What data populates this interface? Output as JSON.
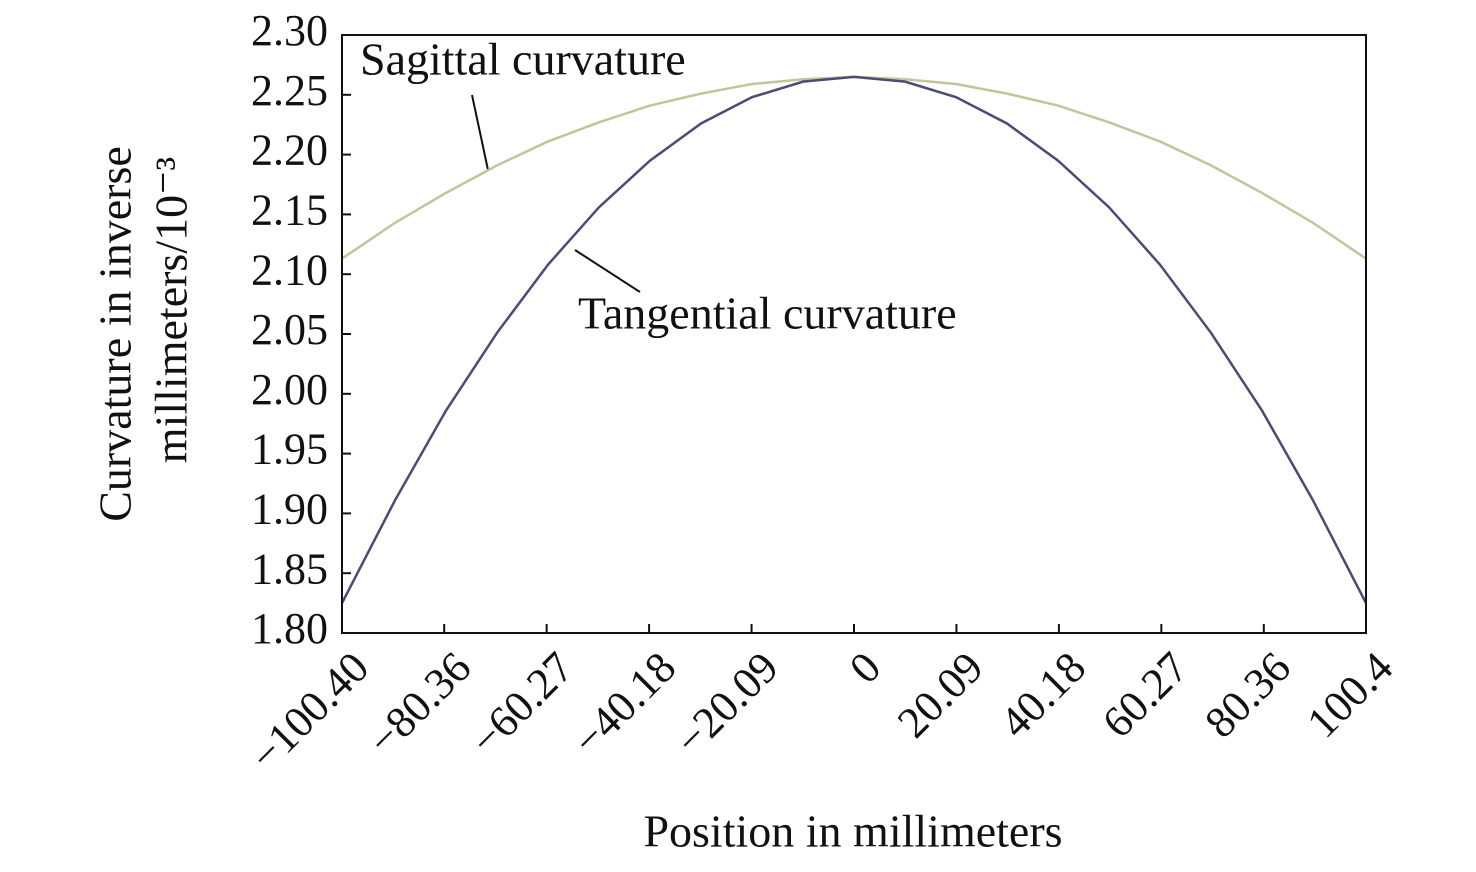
{
  "chart_data": {
    "type": "line",
    "xlabel": "Position in millimeters",
    "ylabel": [
      "Curvature in inverse",
      "millimeters/10⁻³"
    ],
    "x": [
      -100.4,
      -90,
      -80,
      -70,
      -60,
      -50,
      -40,
      -30,
      -20,
      -10,
      0,
      10,
      20,
      30,
      40,
      50,
      60,
      70,
      80,
      90,
      100.4
    ],
    "series": [
      {
        "name": "Sagittal curvature",
        "color": "#c4c49c",
        "values": [
          2.113,
          2.143,
          2.168,
          2.191,
          2.211,
          2.227,
          2.241,
          2.251,
          2.259,
          2.263,
          2.265,
          2.263,
          2.259,
          2.251,
          2.241,
          2.227,
          2.211,
          2.191,
          2.168,
          2.143,
          2.113
        ]
      },
      {
        "name": "Tangential curvature",
        "color": "#4a4c72",
        "values": [
          1.825,
          1.911,
          1.986,
          2.051,
          2.108,
          2.156,
          2.195,
          2.226,
          2.248,
          2.261,
          2.265,
          2.261,
          2.248,
          2.226,
          2.195,
          2.156,
          2.108,
          2.051,
          1.986,
          1.911,
          1.825
        ]
      }
    ],
    "xlim": [
      -100.4,
      100.4
    ],
    "xticks": [
      {
        "value": -100.4,
        "label": "−100.40"
      },
      {
        "value": -80.36,
        "label": "−80.36"
      },
      {
        "value": -60.27,
        "label": "−60.27"
      },
      {
        "value": -40.18,
        "label": "−40.18"
      },
      {
        "value": -20.09,
        "label": "−20.09"
      },
      0,
      20.09,
      40.18,
      60.27,
      80.36,
      100.4
    ],
    "ylim": [
      1.8,
      2.3
    ],
    "yticks": [
      {
        "value": 1.8,
        "label": "1.80"
      },
      1.85,
      {
        "value": 1.9,
        "label": "1.90"
      },
      1.95,
      {
        "value": 2.0,
        "label": "2.00"
      },
      2.05,
      {
        "value": 2.1,
        "label": "2.10"
      },
      2.15,
      {
        "value": 2.2,
        "label": "2.20"
      },
      2.25,
      {
        "value": 2.3,
        "label": "2.30"
      }
    ],
    "grid": false
  }
}
